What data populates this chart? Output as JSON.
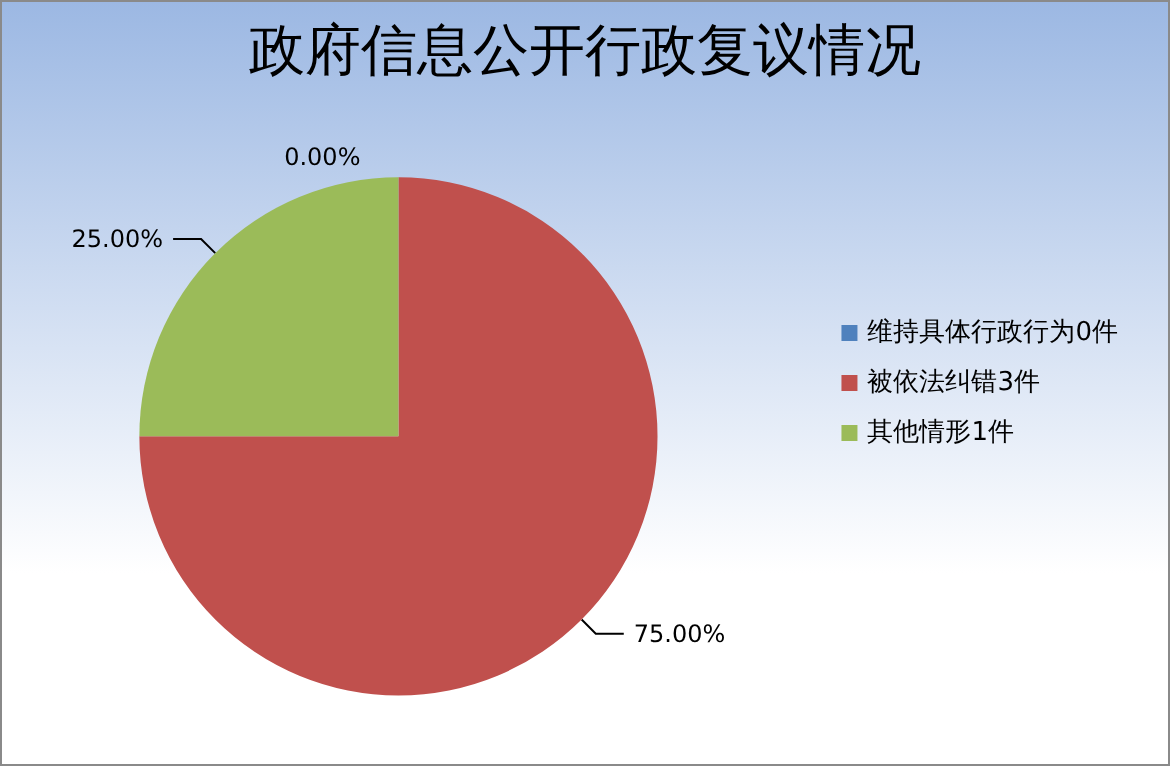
{
  "chart_data": {
    "type": "pie",
    "title": "政府信息公开行政复议情况",
    "categories": [
      "维持具体行政行为0件",
      "被依法纠错3件",
      "其他情形1件"
    ],
    "values": [
      0,
      75,
      25
    ],
    "colors": [
      "#4f81bd",
      "#c0504d",
      "#9bbb59"
    ],
    "value_labels": [
      "0.00%",
      "75.00%",
      "25.00%"
    ],
    "legend": "right"
  }
}
